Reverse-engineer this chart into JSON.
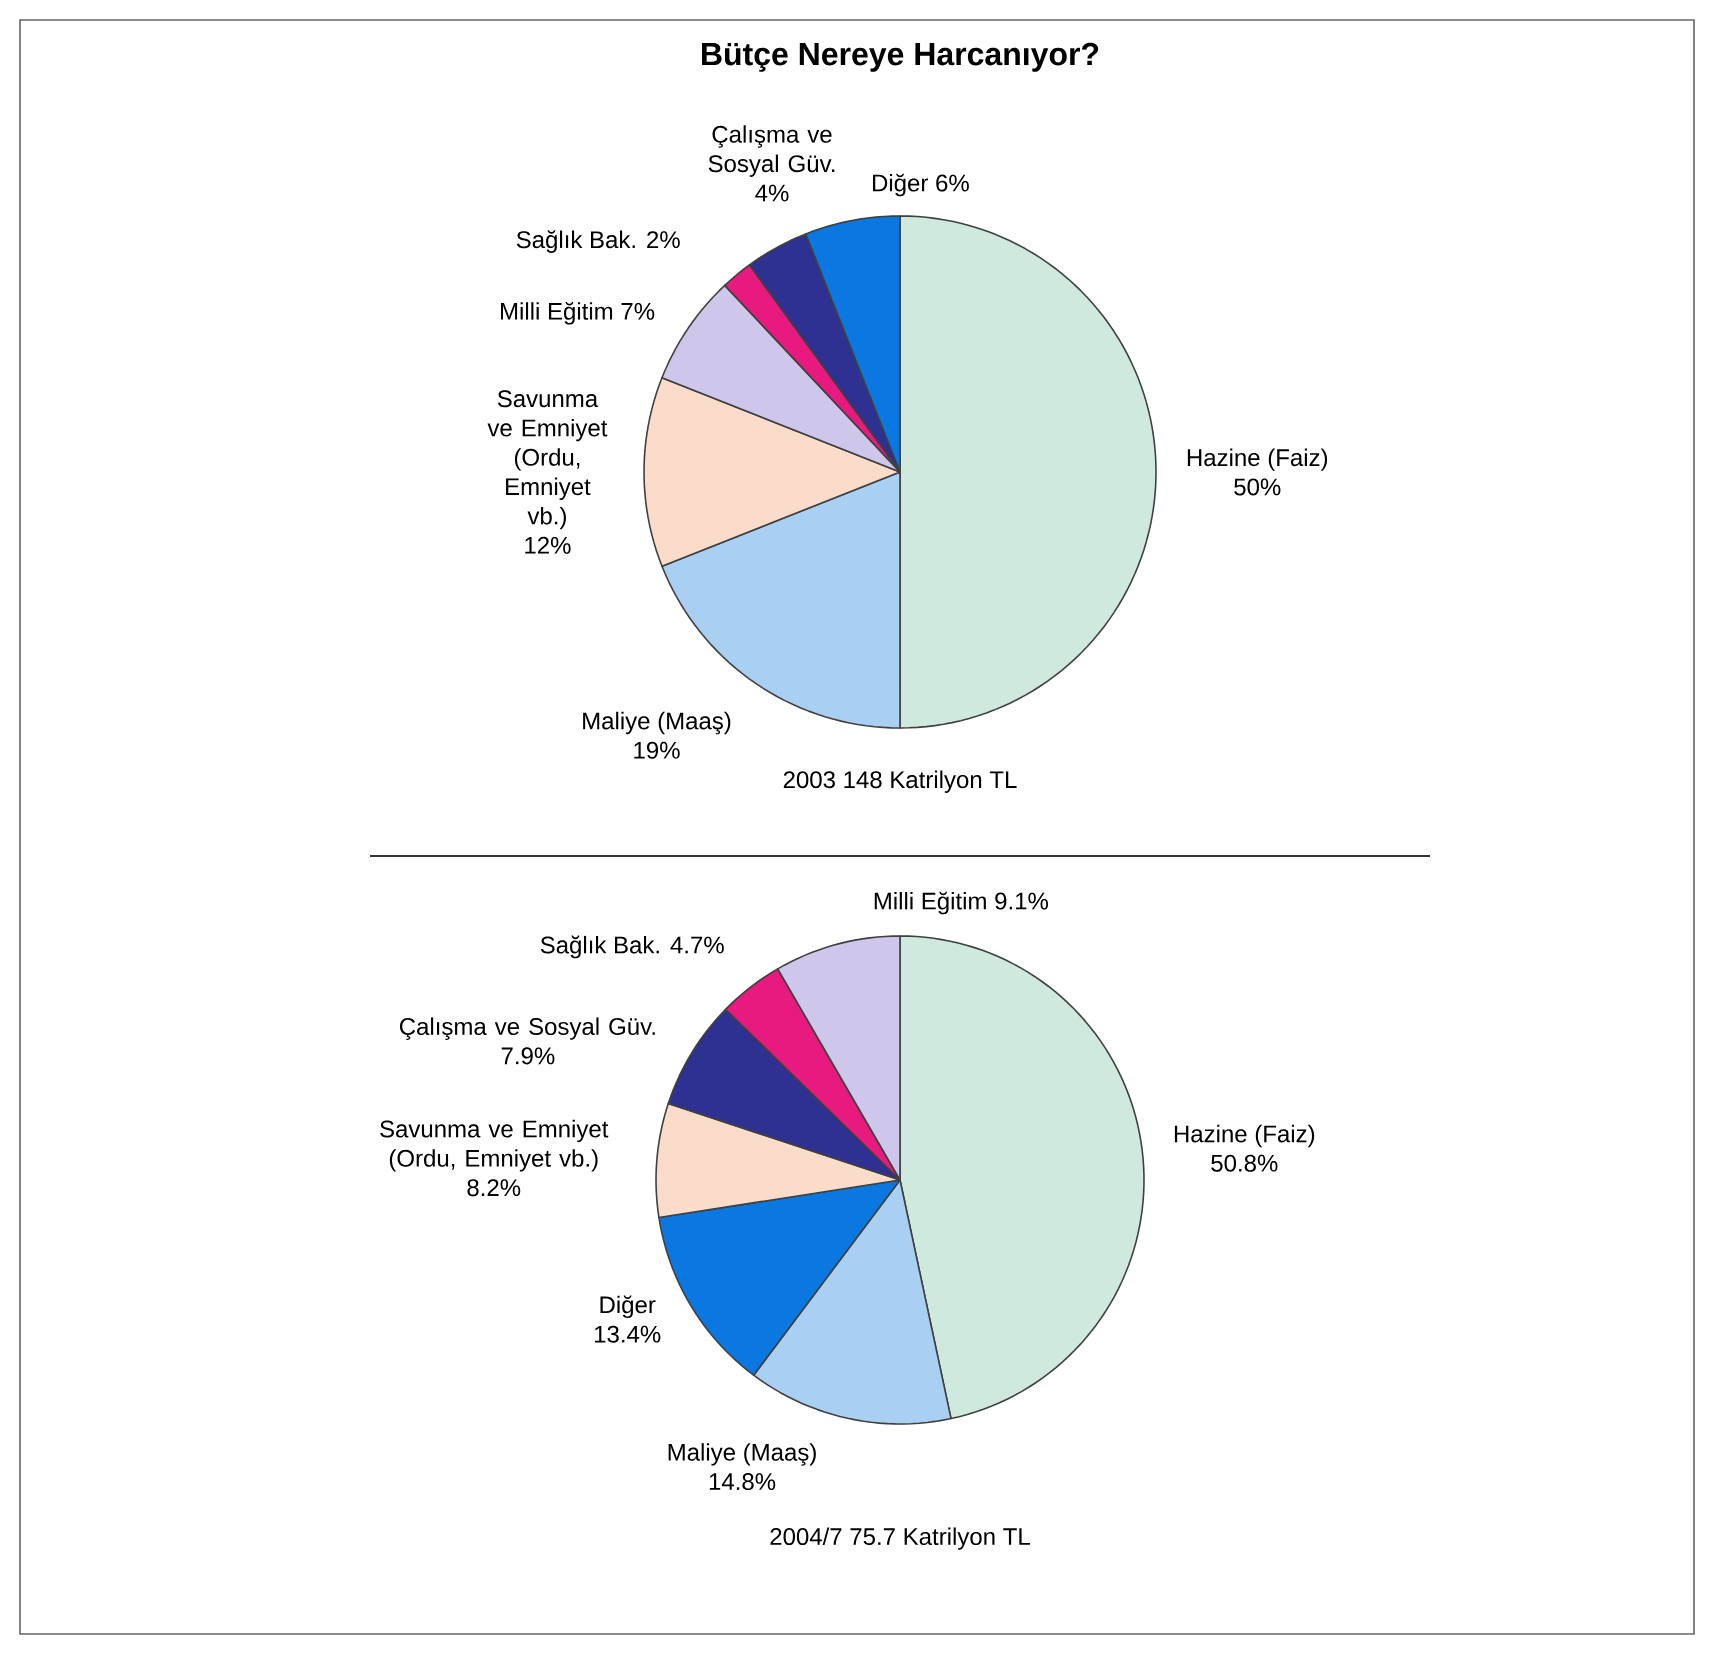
{
  "chart_data": [
    {
      "type": "pie",
      "title": "Bütçe Nereye Harcanıyor?",
      "categories": [
        "Hazine (Faiz)",
        "Maliye (Maaş)",
        "Savunma ve Emniyet (Ordu, Emniyet vb.)",
        "Milli Eğitim",
        "Sağlık Bak.",
        "Çalışma ve Sosyal Güv.",
        "Diğer"
      ],
      "values": [
        50,
        19,
        12,
        7,
        2,
        4,
        6
      ],
      "value_labels": [
        "50%",
        "19%",
        "12%",
        "7%",
        "2%",
        "4%",
        "6%"
      ],
      "colors": [
        "#cfe9df",
        "#a9cff2",
        "#fbdccb",
        "#cfc6ec",
        "#e8197f",
        "#2e3192",
        "#0a78e0"
      ],
      "annotations": [
        "2003 148 Katrilyon TL"
      ]
    },
    {
      "type": "pie",
      "categories": [
        "Hazine (Faiz)",
        "Maliye (Maaş)",
        "Diğer",
        "Savunma ve Emniyet (Ordu, Emniyet vb.)",
        "Çalışma ve Sosyal Güv.",
        "Sağlık Bak.",
        "Milli Eğitim"
      ],
      "values": [
        50.8,
        14.8,
        13.4,
        8.2,
        7.9,
        4.7,
        9.1
      ],
      "value_labels": [
        "50.8%",
        "14.8%",
        "13.4%",
        "8.2%",
        "7.9%",
        "4.7%",
        "9.1%"
      ],
      "colors": [
        "#cfe9df",
        "#a9cff2",
        "#0a78e0",
        "#fbdccb",
        "#2e3192",
        "#e8197f",
        "#cfc6ec"
      ],
      "annotations": [
        "2004/7 75.7 Katrilyon TL"
      ]
    }
  ]
}
